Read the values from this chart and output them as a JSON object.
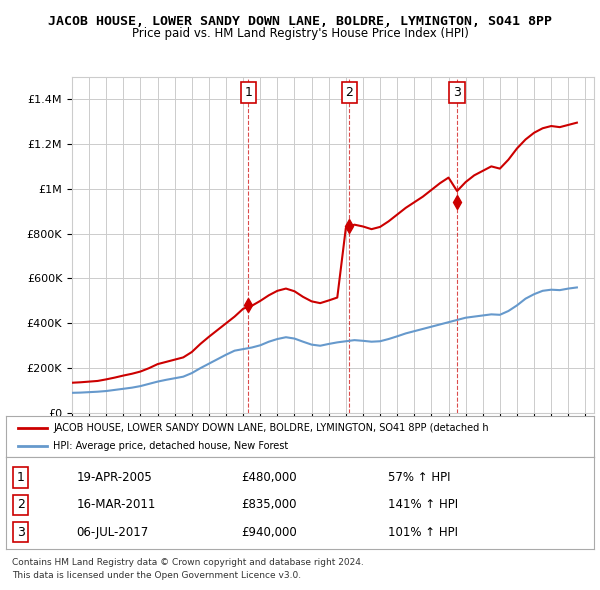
{
  "title": "JACOB HOUSE, LOWER SANDY DOWN LANE, BOLDRE, LYMINGTON, SO41 8PP",
  "subtitle": "Price paid vs. HM Land Registry's House Price Index (HPI)",
  "legend_line1": "JACOB HOUSE, LOWER SANDY DOWN LANE, BOLDRE, LYMINGTON, SO41 8PP (detached h",
  "legend_line2": "HPI: Average price, detached house, New Forest",
  "footer1": "Contains HM Land Registry data © Crown copyright and database right 2024.",
  "footer2": "This data is licensed under the Open Government Licence v3.0.",
  "transactions": [
    {
      "num": 1,
      "date": "19-APR-2005",
      "price": "£480,000",
      "hpi": "57% ↑ HPI",
      "x_year": 2005.3
    },
    {
      "num": 2,
      "date": "16-MAR-2011",
      "price": "£835,000",
      "hpi": "141% ↑ HPI",
      "x_year": 2011.2
    },
    {
      "num": 3,
      "date": "06-JUL-2017",
      "price": "£940,000",
      "hpi": "101% ↑ HPI",
      "x_year": 2017.5
    }
  ],
  "ylim": [
    0,
    1500000
  ],
  "xlim_start": 1995,
  "xlim_end": 2025.5,
  "red_color": "#cc0000",
  "blue_color": "#6699cc",
  "bg_color": "#ffffff",
  "grid_color": "#cccccc",
  "sale_marker_color": "#cc0000"
}
